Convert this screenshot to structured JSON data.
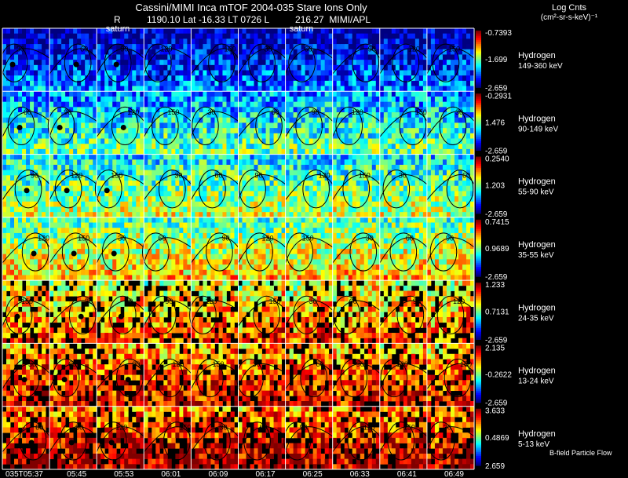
{
  "title": "Cassini/MIMI Inca mTOF  2004-035    Stare    Ions Only",
  "subtitle": "R          1190.10 Lat -16.33 LT 0726 L          216.27  MIMI/APL",
  "colorbar_title": "Log Cnts",
  "colorbar_units": "(cm²-sr-s-keV)⁻¹",
  "flow_label": "B-field Particle Flow",
  "saturn_markers": [
    "saturn",
    "saturn"
  ],
  "colors": {
    "background": "#000000",
    "grid": "#ffffff"
  },
  "chart_data": {
    "type": "heatmap",
    "description_panels": "7 energy rows x 10 time columns of energetic neutral atom images",
    "x_label_first": "035T05:37",
    "time_labels": [
      "035T05:37",
      "05:45",
      "05:53",
      "06:01",
      "06:09",
      "06:17",
      "06:25",
      "06:33",
      "06:41",
      "06:49"
    ],
    "rows": [
      {
        "species": "Hydrogen",
        "energy": "149-360 keV",
        "max": "-0.7393",
        "mid": "-1.699",
        "min": "-2.659",
        "level": 0.15
      },
      {
        "species": "Hydrogen",
        "energy": "90-149 keV",
        "max": "-0.2931",
        "mid": "1.476",
        "min": "-2.659",
        "level": 0.38
      },
      {
        "species": "Hydrogen",
        "energy": "55-90 keV",
        "max": "0.2540",
        "mid": "1.203",
        "min": "-2.659",
        "level": 0.48
      },
      {
        "species": "Hydrogen",
        "energy": "35-55 keV",
        "max": "0.7415",
        "mid": "0.9689",
        "min": "-2.659",
        "level": 0.58
      },
      {
        "species": "Hydrogen",
        "energy": "24-35 keV",
        "max": "1.233",
        "mid": "0.7131",
        "min": "-2.659",
        "level": 0.66
      },
      {
        "species": "Hydrogen",
        "energy": "13-24 keV",
        "max": "2.135",
        "mid": "-0.2622",
        "min": "-2.659",
        "level": 0.76
      },
      {
        "species": "Hydrogen",
        "energy": "5-13 keV",
        "max": "3.633",
        "mid": "0.4869",
        "min": "2.659",
        "level": 0.82
      }
    ],
    "contour_labels": [
      "30",
      "60",
      "90",
      "120",
      "150"
    ]
  }
}
